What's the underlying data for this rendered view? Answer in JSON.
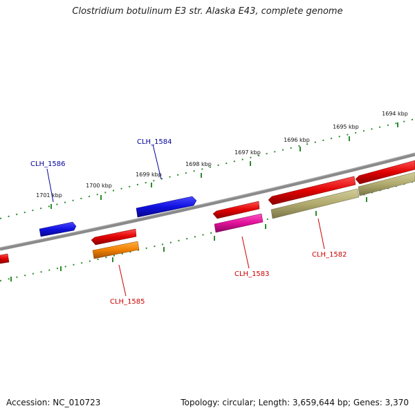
{
  "title": "Clostridium botulinum E3 str. Alaska E43, complete genome",
  "footer": {
    "accession": "Accession: NC_010723",
    "summary": "Topology: circular; Length: 3,659,644 bp; Genes: 3,370"
  },
  "scale_labels": [
    "1694 kbp",
    "1695 kbp",
    "1696 kbp",
    "1697 kbp",
    "1698 kbp",
    "1699 kbp",
    "1700 kbp",
    "1701 kbp"
  ],
  "genes": [
    {
      "id": "CLH_1584",
      "strand": "forward"
    },
    {
      "id": "CLH_1586",
      "strand": "forward"
    },
    {
      "id": "CLH_1582",
      "strand": "reverse"
    },
    {
      "id": "CLH_1583",
      "strand": "reverse"
    },
    {
      "id": "CLH_1585",
      "strand": "reverse"
    }
  ],
  "colors": {
    "backbone": "#7a7a7a",
    "forward_cds": "#1010e0",
    "reverse_cds": "#e00000",
    "gene_magenta": "#e0109a",
    "gene_orange": "#f08000",
    "gene_olive": "#b0aa6e",
    "ticks": "#2a8a2a",
    "label_blue": "#000099",
    "label_red": "#cc0000"
  }
}
